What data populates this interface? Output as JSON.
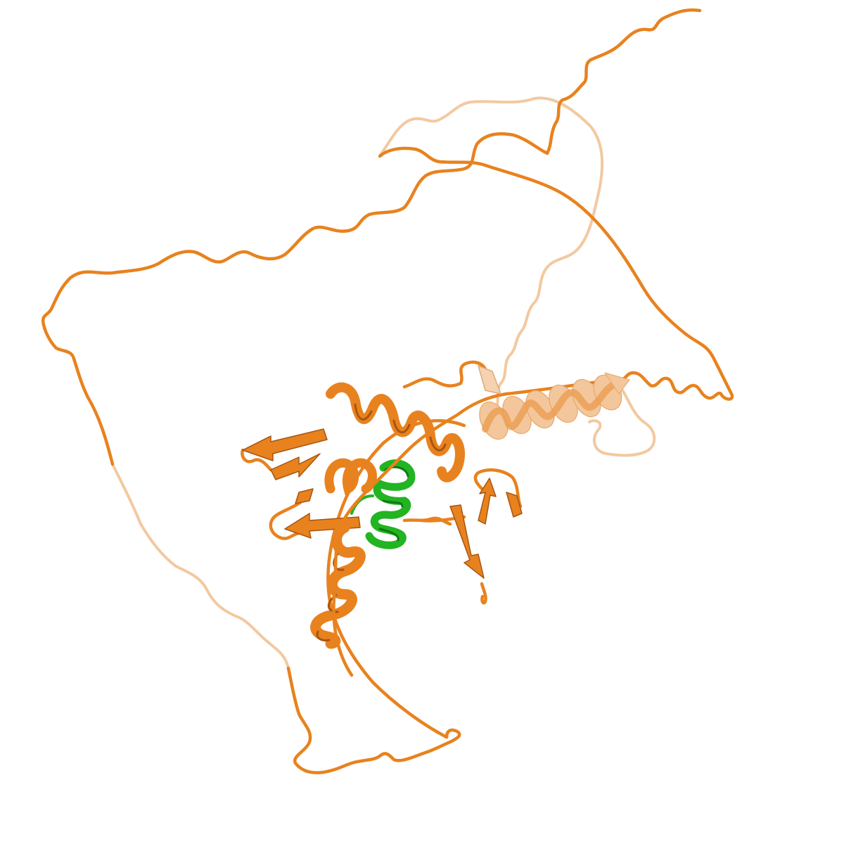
{
  "scene": {
    "subject": "protein-cartoon",
    "background_color": "#ffffff",
    "colors": {
      "chain_a": "#e8821e",
      "chain_a_dark": "#a85510",
      "chain_a_faded": "#f2c9a0",
      "chain_b": "#22b422",
      "chain_b_dark": "#127a12"
    }
  }
}
